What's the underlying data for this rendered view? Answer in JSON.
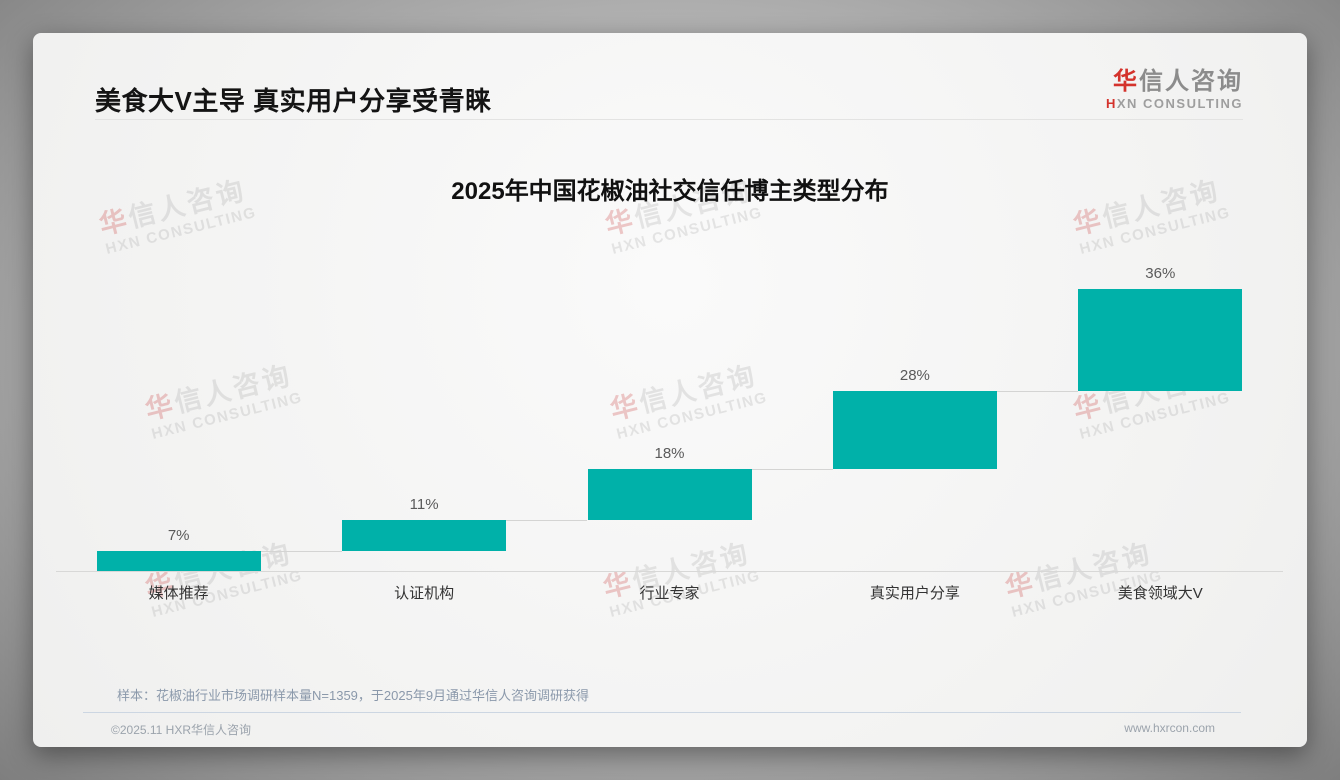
{
  "header": {
    "title": "美食大V主导 真实用户分享受青睐",
    "logo": {
      "cn_first": "华",
      "cn_rest": "信人咨询",
      "en_first": "H",
      "en_rest": "XN CONSULTING"
    }
  },
  "chart_data": {
    "type": "bar",
    "subtype": "waterfall-step",
    "title": "2025年中国花椒油社交信任博主类型分布",
    "categories": [
      "媒体推荐",
      "认证机构",
      "行业专家",
      "真实用户分享",
      "美食领域大V"
    ],
    "values": [
      7,
      11,
      18,
      28,
      36
    ],
    "value_labels": [
      "7%",
      "11%",
      "18%",
      "28%",
      "36%"
    ],
    "unit": "%",
    "ylim": [
      0,
      100
    ],
    "cumulative_tops": [
      7,
      18,
      36,
      64,
      100
    ],
    "bar_color": "#00b1a9",
    "grid": "off",
    "legend": "none",
    "xlabel": "",
    "ylabel": ""
  },
  "watermark": {
    "cn_first": "华",
    "cn_rest": "信人咨询",
    "en": "HXN CONSULTING"
  },
  "footer": {
    "sample_note": "样本：花椒油行业市场调研样本量N=1359，于2025年9月通过华信人咨询调研获得",
    "copyright": "©2025.11 HXR华信人咨询",
    "website": "www.hxrcon.com"
  },
  "colors": {
    "accent_teal": "#00b1a9",
    "logo_red": "#d4332c"
  }
}
